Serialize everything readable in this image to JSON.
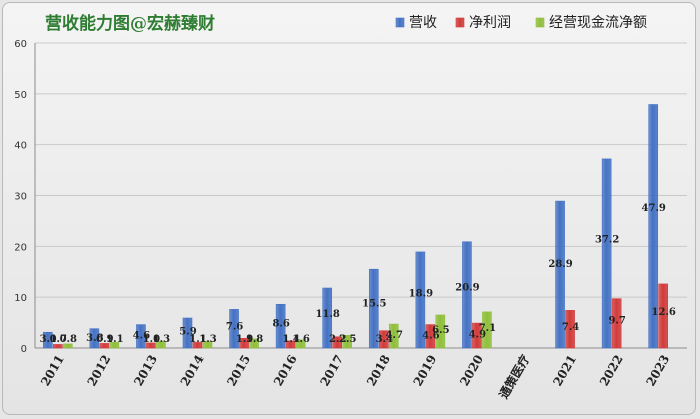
{
  "chart_data": {
    "type": "bar",
    "title": "营收能力图@宏赫臻财",
    "categories": [
      "2011",
      "2012",
      "2013",
      "2014",
      "2015",
      "2016",
      "2017",
      "2018",
      "2019",
      "2020",
      "通策医疗",
      "2021",
      "2022",
      "2023"
    ],
    "series": [
      {
        "name": "营收",
        "values": [
          3.1,
          3.8,
          4.6,
          5.9,
          7.6,
          8.6,
          11.8,
          15.5,
          18.9,
          20.9,
          null,
          28.9,
          37.2,
          47.9
        ]
      },
      {
        "name": "净利润",
        "values": [
          0.7,
          0.9,
          1.0,
          1.1,
          1.9,
          1.4,
          2.2,
          3.4,
          4.6,
          4.9,
          null,
          7.4,
          9.7,
          12.6
        ]
      },
      {
        "name": "经营现金流净额",
        "values": [
          0.8,
          1.1,
          1.3,
          1.3,
          1.8,
          1.6,
          2.5,
          4.7,
          6.5,
          7.1,
          null,
          null,
          null,
          null
        ]
      }
    ],
    "data_labels": [
      [
        "3.1",
        "3.8",
        "4.6",
        "5.9",
        "7.6",
        "8.6",
        "11.8",
        "15.5",
        "18.9",
        "20.9",
        "",
        "28.9",
        "37.2",
        "47.9"
      ],
      [
        "0.7",
        "0.9",
        "1.0",
        "1.1",
        "1.9",
        "1.4",
        "2.2",
        "3.4",
        "4.6",
        "4.9",
        "",
        "7.4",
        "9.7",
        "12.6"
      ],
      [
        "0.8",
        "1.1",
        "1.3",
        "1.3",
        "1.8",
        "1.6",
        "2.5",
        "4.7",
        "6.5",
        "7.1",
        "",
        "",
        "",
        ""
      ]
    ],
    "colors": [
      "#4472c4",
      "#d23a3a",
      "#8fbf3a"
    ],
    "title_color": "#2e7d32",
    "ylim": [
      0,
      60
    ],
    "yticks": [
      0,
      10,
      20,
      30,
      40,
      50,
      60
    ],
    "ytick_labels": [
      "0",
      "10",
      "20",
      "30",
      "40",
      "50",
      "60"
    ],
    "grid": true,
    "legend_position": "top-right",
    "xtick_rotation": -60
  }
}
